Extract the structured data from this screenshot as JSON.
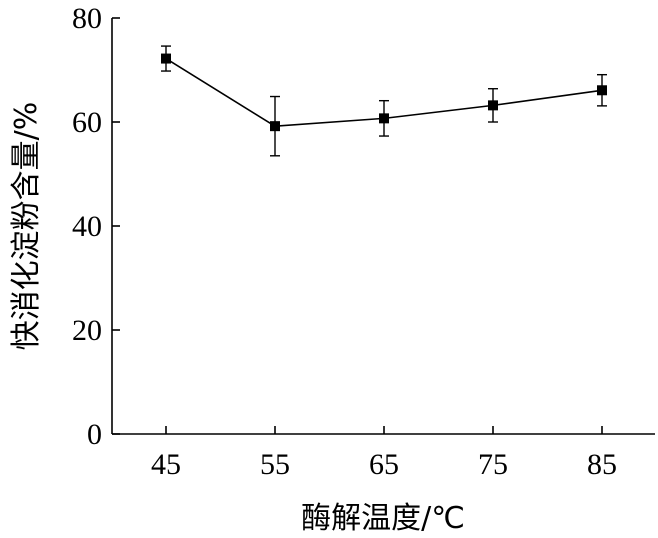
{
  "chart_data": {
    "type": "line",
    "x": [
      45,
      55,
      65,
      75,
      85
    ],
    "categories": [
      "45",
      "55",
      "65",
      "75",
      "85"
    ],
    "series": [
      {
        "values": [
          72.2,
          59.2,
          60.7,
          63.2,
          66.1
        ],
        "errors": [
          2.4,
          5.7,
          3.4,
          3.2,
          3.0
        ]
      }
    ],
    "xlabel": "酶解温度/℃",
    "ylabel": "快消化淀粉含量/%",
    "ylim": [
      0,
      80
    ],
    "yticks": [
      "0",
      "20",
      "40",
      "60",
      "80"
    ],
    "grid": false,
    "marker": "square"
  }
}
